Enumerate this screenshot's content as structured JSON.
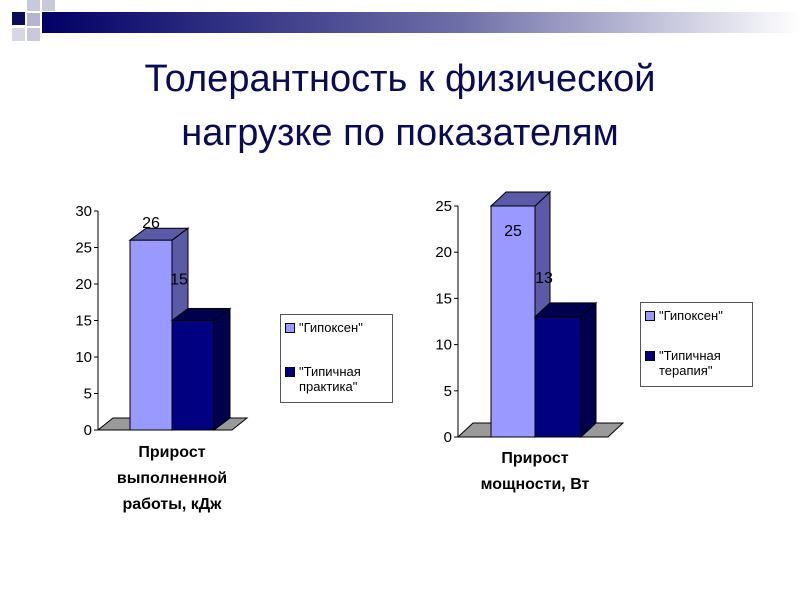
{
  "slide": {
    "title": "Толерантность к физической\nнагрузке по показателям"
  },
  "colors": {
    "series_a": "#9999ff",
    "series_a_side": "#5a5aa6",
    "series_b": "#000080",
    "series_b_side": "#00004d",
    "floor": "#9a9a9a",
    "title": "#0a0a5a"
  },
  "chart_data": [
    {
      "type": "bar",
      "categories": [
        "Прирост\nвыполненной\nработы, кДж"
      ],
      "series": [
        {
          "name": "\"Гипоксен\"",
          "values": [
            26
          ]
        },
        {
          "name": "\"Типичная\nпрактика\"",
          "values": [
            15
          ]
        }
      ],
      "ylim": [
        0,
        30
      ],
      "yticks": [
        "0",
        "5",
        "10",
        "15",
        "20",
        "25",
        "30"
      ],
      "data_labels": [
        "26",
        "15"
      ],
      "legend": "right"
    },
    {
      "type": "bar",
      "categories": [
        "Прирост\nмощности, Вт"
      ],
      "series": [
        {
          "name": "\"Гипоксен\"",
          "values": [
            25
          ]
        },
        {
          "name": "\"Типичная\nтерапия\"",
          "values": [
            13
          ]
        }
      ],
      "ylim": [
        0,
        25
      ],
      "yticks": [
        "0",
        "5",
        "10",
        "15",
        "20",
        "25"
      ],
      "data_labels": [
        "25",
        "13"
      ],
      "legend": "right"
    }
  ]
}
